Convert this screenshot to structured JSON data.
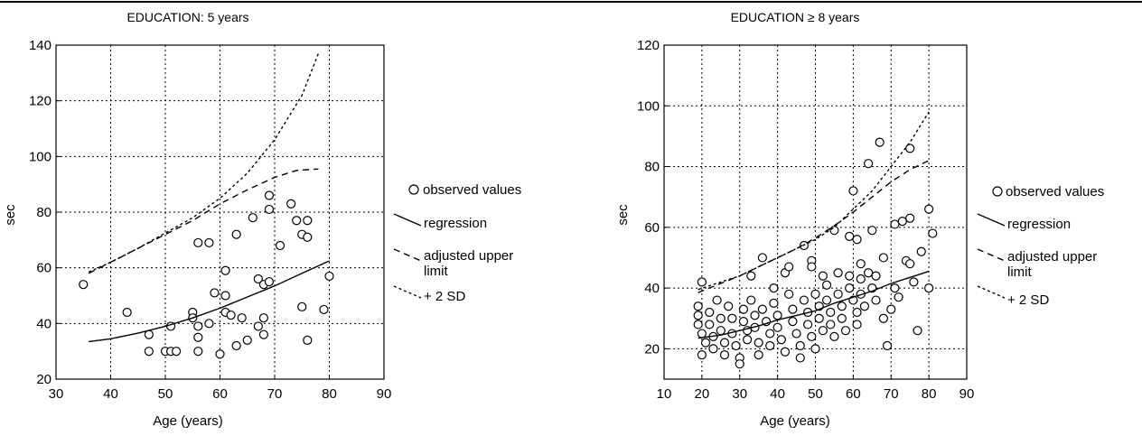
{
  "chart_data": [
    {
      "type": "scatter",
      "title": "EDUCATION: 5 years",
      "xlabel": "Age (years)",
      "ylabel": "sec",
      "xlim": [
        30,
        90
      ],
      "ylim": [
        20,
        140
      ],
      "xticks": [
        30,
        40,
        50,
        60,
        70,
        80,
        90
      ],
      "yticks": [
        20,
        40,
        60,
        80,
        100,
        120,
        140
      ],
      "grid": true,
      "legend_position": "right",
      "legend": [
        "observed values",
        "regression",
        "adjusted upper limit",
        "+ 2 SD"
      ],
      "series": [
        {
          "name": "observed values",
          "kind": "points",
          "points": [
            [
              35,
              54
            ],
            [
              43,
              44
            ],
            [
              47,
              36
            ],
            [
              47,
              30
            ],
            [
              50,
              30
            ],
            [
              51,
              30
            ],
            [
              51,
              39
            ],
            [
              52,
              30
            ],
            [
              55,
              44
            ],
            [
              55,
              42
            ],
            [
              56,
              39
            ],
            [
              56,
              35
            ],
            [
              56,
              30
            ],
            [
              56,
              69
            ],
            [
              58,
              69
            ],
            [
              58,
              40
            ],
            [
              59,
              51
            ],
            [
              60,
              29
            ],
            [
              61,
              59
            ],
            [
              61,
              50
            ],
            [
              61,
              44
            ],
            [
              62,
              43
            ],
            [
              63,
              72
            ],
            [
              63,
              32
            ],
            [
              64,
              42
            ],
            [
              65,
              34
            ],
            [
              66,
              78
            ],
            [
              67,
              56
            ],
            [
              67,
              39
            ],
            [
              68,
              54
            ],
            [
              68,
              42
            ],
            [
              68,
              36
            ],
            [
              69,
              81
            ],
            [
              69,
              86
            ],
            [
              69,
              55
            ],
            [
              71,
              68
            ],
            [
              73,
              83
            ],
            [
              74,
              77
            ],
            [
              75,
              46
            ],
            [
              75,
              72
            ],
            [
              76,
              34
            ],
            [
              76,
              77
            ],
            [
              76,
              71
            ],
            [
              79,
              45
            ],
            [
              80,
              57
            ]
          ]
        },
        {
          "name": "regression",
          "kind": "solid",
          "points": [
            [
              36,
              33.5
            ],
            [
              40,
              34.5
            ],
            [
              45,
              36.5
            ],
            [
              50,
              39
            ],
            [
              55,
              42
            ],
            [
              60,
              45.5
            ],
            [
              65,
              49.5
            ],
            [
              70,
              53.5
            ],
            [
              75,
              58
            ],
            [
              80,
              62.5
            ]
          ]
        },
        {
          "name": "adjusted upper limit",
          "kind": "dashed",
          "points": [
            [
              36,
              58
            ],
            [
              40,
              62
            ],
            [
              45,
              67
            ],
            [
              50,
              72
            ],
            [
              55,
              77
            ],
            [
              60,
              83
            ],
            [
              65,
              88
            ],
            [
              70,
              92.5
            ],
            [
              74,
              95
            ],
            [
              78,
              95.5
            ]
          ]
        },
        {
          "name": "+ 2 SD",
          "kind": "dotted",
          "points": [
            [
              36,
              58.5
            ],
            [
              40,
              62
            ],
            [
              45,
              67
            ],
            [
              50,
              72.5
            ],
            [
              55,
              78
            ],
            [
              60,
              85
            ],
            [
              65,
              94
            ],
            [
              70,
              106
            ],
            [
              75,
              122
            ],
            [
              78,
              137
            ]
          ]
        }
      ]
    },
    {
      "type": "scatter",
      "title": "EDUCATION ≥ 8 years",
      "xlabel": "Age (years)",
      "ylabel": "sec",
      "xlim": [
        10,
        90
      ],
      "ylim": [
        10,
        120
      ],
      "xticks": [
        10,
        20,
        30,
        40,
        50,
        60,
        70,
        80,
        90
      ],
      "yticks": [
        20,
        40,
        60,
        80,
        100,
        120
      ],
      "grid": true,
      "legend_position": "right",
      "legend": [
        "observed values",
        "regression",
        "adjusted upper limit",
        "+ 2 SD"
      ],
      "series": [
        {
          "name": "observed values",
          "kind": "points",
          "points": [
            [
              20,
              42
            ],
            [
              19,
              34
            ],
            [
              19,
              31
            ],
            [
              19,
              28
            ],
            [
              20,
              25
            ],
            [
              21,
              22
            ],
            [
              20,
              18
            ],
            [
              22,
              32
            ],
            [
              22,
              28
            ],
            [
              23,
              24
            ],
            [
              23,
              20
            ],
            [
              24,
              36
            ],
            [
              25,
              30
            ],
            [
              25,
              26
            ],
            [
              26,
              22
            ],
            [
              26,
              18
            ],
            [
              27,
              34
            ],
            [
              28,
              30
            ],
            [
              28,
              25
            ],
            [
              29,
              21
            ],
            [
              30,
              17
            ],
            [
              30,
              15
            ],
            [
              31,
              33
            ],
            [
              31,
              29
            ],
            [
              32,
              26
            ],
            [
              32,
              23
            ],
            [
              33,
              44
            ],
            [
              33,
              36
            ],
            [
              34,
              31
            ],
            [
              34,
              27
            ],
            [
              35,
              22
            ],
            [
              35,
              18
            ],
            [
              36,
              50
            ],
            [
              36,
              33
            ],
            [
              37,
              29
            ],
            [
              38,
              25
            ],
            [
              38,
              21
            ],
            [
              39,
              40
            ],
            [
              39,
              35
            ],
            [
              40,
              31
            ],
            [
              40,
              27
            ],
            [
              41,
              23
            ],
            [
              42,
              19
            ],
            [
              42,
              45
            ],
            [
              43,
              47
            ],
            [
              43,
              38
            ],
            [
              44,
              33
            ],
            [
              44,
              29
            ],
            [
              45,
              25
            ],
            [
              46,
              21
            ],
            [
              46,
              17
            ],
            [
              47,
              54
            ],
            [
              47,
              36
            ],
            [
              48,
              32
            ],
            [
              48,
              28
            ],
            [
              49,
              49
            ],
            [
              49,
              47
            ],
            [
              49,
              24
            ],
            [
              50,
              20
            ],
            [
              50,
              38
            ],
            [
              51,
              34
            ],
            [
              51,
              30
            ],
            [
              52,
              44
            ],
            [
              52,
              26
            ],
            [
              53,
              41
            ],
            [
              53,
              36
            ],
            [
              54,
              32
            ],
            [
              54,
              28
            ],
            [
              55,
              59
            ],
            [
              55,
              24
            ],
            [
              56,
              45
            ],
            [
              56,
              38
            ],
            [
              57,
              34
            ],
            [
              57,
              30
            ],
            [
              58,
              26
            ],
            [
              59,
              57
            ],
            [
              59,
              44
            ],
            [
              59,
              40
            ],
            [
              60,
              72
            ],
            [
              60,
              36
            ],
            [
              61,
              56
            ],
            [
              61,
              32
            ],
            [
              61,
              28
            ],
            [
              62,
              48
            ],
            [
              62,
              43
            ],
            [
              62,
              38
            ],
            [
              63,
              34
            ],
            [
              64,
              81
            ],
            [
              64,
              45
            ],
            [
              65,
              59
            ],
            [
              65,
              40
            ],
            [
              66,
              44
            ],
            [
              66,
              36
            ],
            [
              67,
              88
            ],
            [
              68,
              50
            ],
            [
              68,
              30
            ],
            [
              69,
              21
            ],
            [
              70,
              33
            ],
            [
              71,
              61
            ],
            [
              71,
              40
            ],
            [
              72,
              37
            ],
            [
              73,
              62
            ],
            [
              74,
              49
            ],
            [
              75,
              86
            ],
            [
              75,
              63
            ],
            [
              75,
              48
            ],
            [
              76,
              42
            ],
            [
              77,
              26
            ],
            [
              78,
              52
            ],
            [
              80,
              40
            ],
            [
              80,
              66
            ],
            [
              81,
              58
            ]
          ]
        },
        {
          "name": "regression",
          "kind": "solid",
          "points": [
            [
              19,
              23.5
            ],
            [
              25,
              24.5
            ],
            [
              30,
              26
            ],
            [
              35,
              27.5
            ],
            [
              40,
              29.5
            ],
            [
              45,
              31
            ],
            [
              50,
              32.5
            ],
            [
              55,
              35
            ],
            [
              60,
              37
            ],
            [
              65,
              39
            ],
            [
              70,
              41.5
            ],
            [
              75,
              43.5
            ],
            [
              80,
              45.5
            ]
          ]
        },
        {
          "name": "adjusted upper limit",
          "kind": "dashed",
          "points": [
            [
              19,
              38.5
            ],
            [
              25,
              41.5
            ],
            [
              30,
              44
            ],
            [
              35,
              47
            ],
            [
              40,
              50
            ],
            [
              45,
              53
            ],
            [
              50,
              56.5
            ],
            [
              55,
              60.5
            ],
            [
              60,
              65
            ],
            [
              65,
              70
            ],
            [
              70,
              75
            ],
            [
              75,
              79
            ],
            [
              80,
              82
            ]
          ]
        },
        {
          "name": "+ 2 SD",
          "kind": "dotted",
          "points": [
            [
              19,
              39.5
            ],
            [
              25,
              42
            ],
            [
              30,
              44
            ],
            [
              35,
              47
            ],
            [
              40,
              50
            ],
            [
              45,
              53
            ],
            [
              50,
              56
            ],
            [
              55,
              60
            ],
            [
              60,
              66
            ],
            [
              65,
              72
            ],
            [
              70,
              80
            ],
            [
              75,
              88
            ],
            [
              80,
              98
            ]
          ]
        }
      ]
    }
  ]
}
